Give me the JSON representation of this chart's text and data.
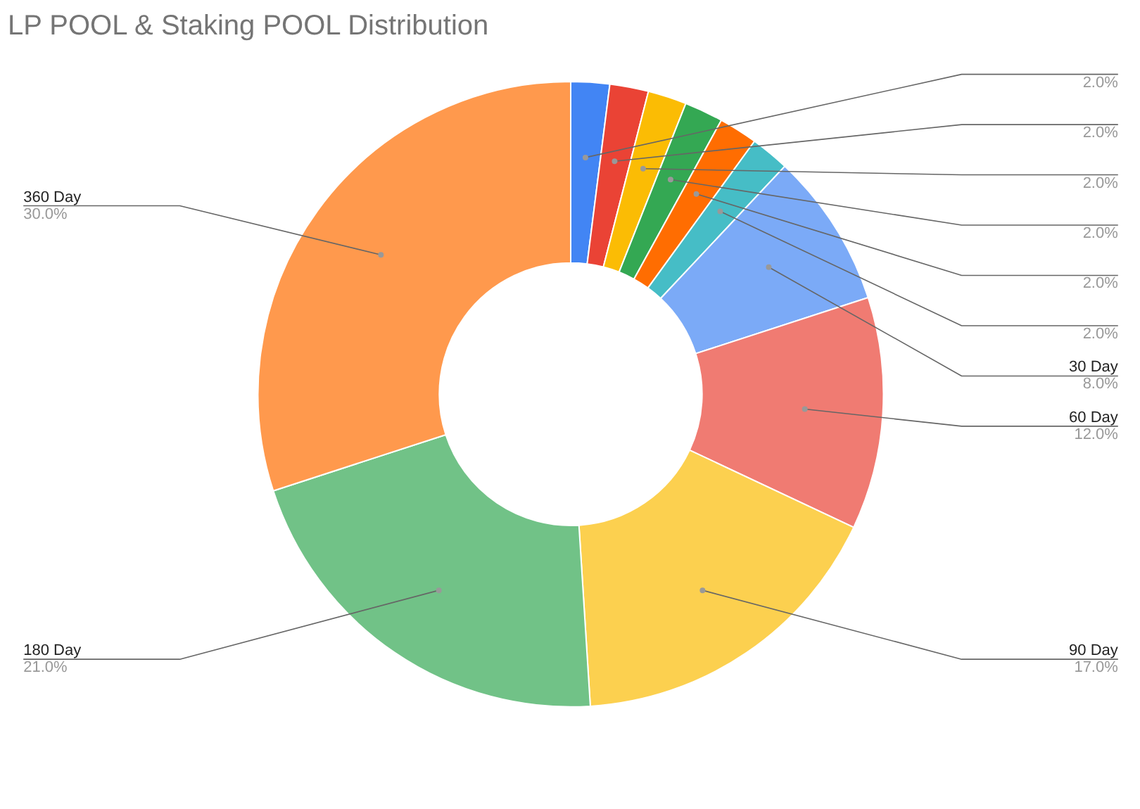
{
  "chart_data": {
    "type": "donut",
    "title": "LP POOL & Staking POOL Distribution",
    "categories": [
      null,
      null,
      null,
      null,
      null,
      null,
      "30 Day",
      "60 Day",
      "90 Day",
      "180 Day",
      "360 Day"
    ],
    "values": [
      2,
      2,
      2,
      2,
      2,
      2,
      8,
      12,
      17,
      21,
      30
    ],
    "colors": [
      "#4285f4",
      "#ea4335",
      "#fbbc04",
      "#34a853",
      "#ff6d01",
      "#46bdc6",
      "#7baaf7",
      "#f07b72",
      "#fcd04f",
      "#71c287",
      "#ff994d"
    ],
    "value_labels": [
      "2.0%",
      "2.0%",
      "2.0%",
      "2.0%",
      "2.0%",
      "2.0%",
      "8.0%",
      "12.0%",
      "17.0%",
      "21.0%",
      "30.0%"
    ]
  }
}
